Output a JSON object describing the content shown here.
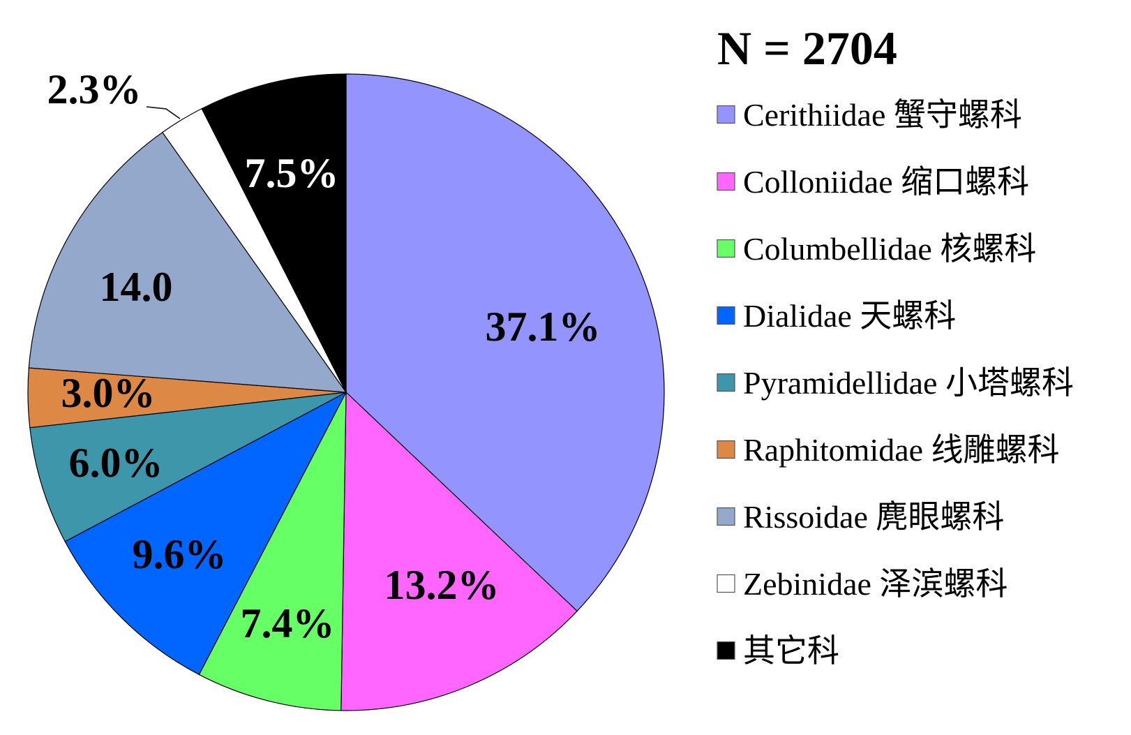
{
  "chart_data": {
    "type": "pie",
    "title": "N = 2704",
    "legend_placement": "right",
    "start_angle": "12 o'clock, clockwise",
    "slices": [
      {
        "name": "Cerithiidae 蟹守螺科",
        "value": 37.1,
        "label": "37.1%",
        "color": "#9494FF",
        "label_color": "#000000"
      },
      {
        "name": "Colloniidae 缩口螺科",
        "value": 13.2,
        "label": "13.2%",
        "color": "#FF66FF",
        "label_color": "#000000"
      },
      {
        "name": "Columbellidae 核螺科",
        "value": 7.4,
        "label": "7.4%",
        "color": "#66FF66",
        "label_color": "#000000"
      },
      {
        "name": "Dialidae 天螺科",
        "value": 9.6,
        "label": "9.6%",
        "color": "#0066FF",
        "label_color": "#000000"
      },
      {
        "name": "Pyramidellidae 小塔螺科",
        "value": 6.0,
        "label": "6.0%",
        "color": "#3D96AA",
        "label_color": "#000000"
      },
      {
        "name": "Raphitomidae 线雕螺科",
        "value": 3.0,
        "label": "3.0%",
        "color": "#DD8844",
        "label_color": "#000000"
      },
      {
        "name": "Rissoidae 麂眼螺科",
        "value": 14.0,
        "label": "14.0",
        "color": "#94A8CC",
        "label_color": "#000000"
      },
      {
        "name": "Zebinidae 泽滨螺科",
        "value": 2.3,
        "label": "2.3%",
        "color": "#FFFFFF",
        "label_color": "#000000"
      },
      {
        "name": "其它科",
        "value": 7.5,
        "label": "7.5%",
        "color": "#000000",
        "label_color": "#FFFFFF"
      }
    ]
  }
}
